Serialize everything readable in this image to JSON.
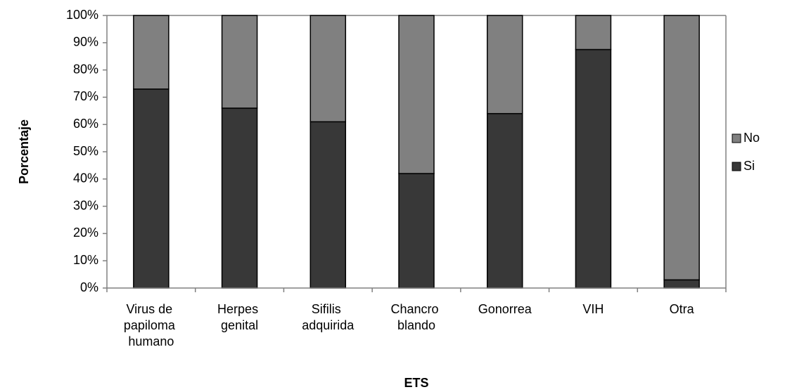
{
  "chart_data": {
    "type": "stacked_bar_100",
    "x_label": "ETS",
    "y_label": "Porcentaje",
    "categories": [
      "Virus de papiloma humano",
      "Herpes genital",
      "Sifilis adquirida",
      "Chancro blando",
      "Gonorrea",
      "VIH",
      "Otra"
    ],
    "series": [
      {
        "name": "Si",
        "color": "#383838",
        "values": [
          73,
          66,
          61,
          42,
          64,
          87.5,
          3
        ]
      },
      {
        "name": "No",
        "color": "#808080",
        "values": [
          27,
          34,
          39,
          58,
          36,
          12.5,
          97
        ]
      }
    ],
    "ylim": [
      0,
      100
    ],
    "yticks": [
      {
        "value": 0,
        "label": "0%"
      },
      {
        "value": 10,
        "label": "10%"
      },
      {
        "value": 20,
        "label": "20%"
      },
      {
        "value": 30,
        "label": "30%"
      },
      {
        "value": 40,
        "label": "40%"
      },
      {
        "value": 50,
        "label": "50%"
      },
      {
        "value": 60,
        "label": "60%"
      },
      {
        "value": 70,
        "label": "70%"
      },
      {
        "value": 80,
        "label": "80%"
      },
      {
        "value": 90,
        "label": "90%"
      },
      {
        "value": 100,
        "label": "100%"
      }
    ],
    "legend": "right"
  }
}
